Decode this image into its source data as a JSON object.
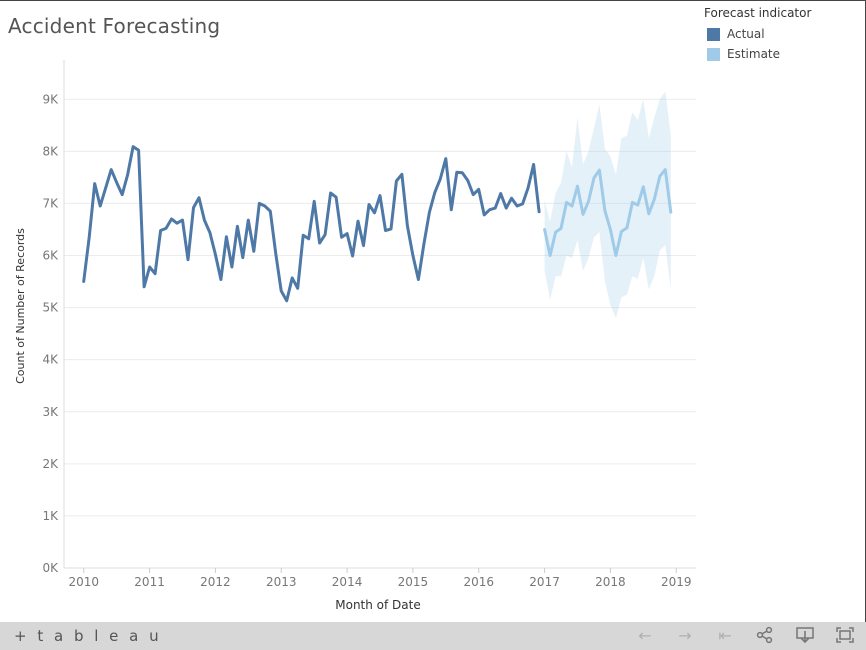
{
  "title": "Accident Forecasting",
  "legend": {
    "title": "Forecast indicator",
    "items": [
      {
        "label": "Actual",
        "color": "#4e79a7"
      },
      {
        "label": "Estimate",
        "color": "#a0cbe8"
      }
    ]
  },
  "footer": {
    "brand": "+ t a b l e a u",
    "icons": [
      "undo-icon",
      "redo-icon",
      "revert-icon",
      "share-icon",
      "download-icon",
      "fullscreen-icon"
    ]
  },
  "chart_data": {
    "type": "line",
    "xlabel": "Month of Date",
    "ylabel": "Count of Number of Records",
    "xlim": [
      2009.7,
      2019.3
    ],
    "ylim": [
      0,
      9600
    ],
    "x_ticks": [
      "2010",
      "2011",
      "2012",
      "2013",
      "2014",
      "2015",
      "2016",
      "2017",
      "2018",
      "2019"
    ],
    "y_ticks": [
      "0K",
      "1K",
      "2K",
      "3K",
      "4K",
      "5K",
      "6K",
      "7K",
      "8K",
      "9K"
    ],
    "y_tick_values": [
      0,
      1000,
      2000,
      3000,
      4000,
      5000,
      6000,
      7000,
      8000,
      9000
    ],
    "grid": true,
    "legend_position": "top-right",
    "series": [
      {
        "name": "Actual",
        "color": "#4e79a7",
        "x_start": 2010.0,
        "step": 0.08333,
        "values": [
          5500,
          6350,
          7380,
          6950,
          7300,
          7650,
          7400,
          7170,
          7550,
          8090,
          8020,
          5400,
          5780,
          5650,
          6480,
          6520,
          6700,
          6620,
          6680,
          5920,
          6920,
          7110,
          6680,
          6440,
          6020,
          5540,
          6360,
          5780,
          6560,
          5960,
          6680,
          6080,
          7000,
          6950,
          6850,
          6030,
          5320,
          5130,
          5570,
          5370,
          6390,
          6320,
          7040,
          6240,
          6400,
          7200,
          7120,
          6350,
          6420,
          5990,
          6660,
          6190,
          6980,
          6820,
          7150,
          6480,
          6510,
          7430,
          7560,
          6570,
          6000,
          5540,
          6220,
          6830,
          7210,
          7470,
          7860,
          6880,
          7600,
          7590,
          7440,
          7170,
          7270,
          6780,
          6880,
          6910,
          7190,
          6910,
          7100,
          6950,
          6990,
          7300,
          7750,
          6840
        ]
      },
      {
        "name": "Estimate",
        "color": "#a0cbe8",
        "x_start": 2017.0,
        "step": 0.08333,
        "values": [
          6500,
          6000,
          6450,
          6520,
          7020,
          6950,
          7330,
          6790,
          7040,
          7490,
          7640,
          6860,
          6500,
          6000,
          6460,
          6530,
          7020,
          6970,
          7320,
          6800,
          7080,
          7520,
          7650,
          6830
        ],
        "upper": [
          7050,
          6650,
          7200,
          7400,
          8000,
          7700,
          8650,
          7750,
          8000,
          8450,
          8900,
          8050,
          7900,
          7550,
          8250,
          8300,
          8750,
          8600,
          9000,
          8250,
          8650,
          9000,
          9150,
          8300
        ],
        "lower": [
          5700,
          5150,
          5600,
          5600,
          6000,
          5950,
          6300,
          5700,
          5950,
          6350,
          6450,
          5500,
          5050,
          4800,
          5200,
          5250,
          5600,
          5550,
          5950,
          5350,
          5600,
          6100,
          6200,
          5350
        ]
      }
    ]
  }
}
